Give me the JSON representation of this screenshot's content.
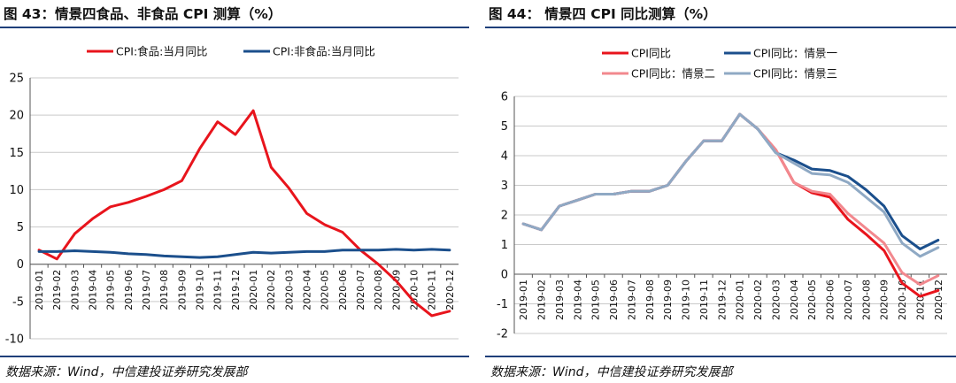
{
  "charts": [
    {
      "panel_title": "图 43：情景四食品、非食品 CPI 测算（%）",
      "source": "数据来源：Wind，中信建投证券研究发展部"
    },
    {
      "panel_title": "图 44：   情景四 CPI 同比测算（%）",
      "source": "数据来源：Wind，中信建投证券研究发展部"
    }
  ],
  "chart_data": [
    {
      "type": "line",
      "title": "",
      "xlabel": "",
      "ylabel": "",
      "ylim": [
        -10,
        25
      ],
      "yticks": [
        -10,
        -5,
        0,
        5,
        10,
        15,
        20,
        25
      ],
      "grid": true,
      "legend_position": "top",
      "categories": [
        "2019-01",
        "2019-02",
        "2019-03",
        "2019-04",
        "2019-05",
        "2019-06",
        "2019-07",
        "2019-08",
        "2019-09",
        "2019-10",
        "2019-11",
        "2019-12",
        "2020-01",
        "2020-02",
        "2020-03",
        "2020-04",
        "2020-05",
        "2020-06",
        "2020-07",
        "2020-08",
        "2020-09",
        "2020-10",
        "2020-11",
        "2020-12"
      ],
      "series": [
        {
          "name": "CPI:食品:当月同比",
          "color": "#e8141c",
          "values": [
            1.9,
            0.7,
            4.1,
            6.1,
            7.7,
            8.3,
            9.1,
            10.0,
            11.2,
            15.5,
            19.1,
            17.4,
            20.6,
            13.0,
            10.2,
            6.8,
            5.3,
            4.3,
            1.9,
            0.0,
            -2.2,
            -5.0,
            -6.9,
            -6.3
          ]
        },
        {
          "name": "CPI:非食品:当月同比",
          "color": "#1b4f8c",
          "values": [
            1.7,
            1.7,
            1.8,
            1.7,
            1.6,
            1.4,
            1.3,
            1.1,
            1.0,
            0.9,
            1.0,
            1.3,
            1.6,
            1.5,
            1.6,
            1.7,
            1.7,
            1.9,
            1.9,
            1.9,
            2.0,
            1.9,
            2.0,
            1.9
          ]
        }
      ]
    },
    {
      "type": "line",
      "title": "",
      "xlabel": "",
      "ylabel": "",
      "ylim": [
        -2,
        6
      ],
      "yticks": [
        -2,
        -1,
        0,
        1,
        2,
        3,
        4,
        5,
        6
      ],
      "grid": true,
      "legend_position": "top",
      "categories": [
        "2019-01",
        "2019-02",
        "2019-03",
        "2019-04",
        "2019-05",
        "2019-06",
        "2019-07",
        "2019-08",
        "2019-09",
        "2019-10",
        "2019-11",
        "2019-12",
        "2020-01",
        "2020-02",
        "2020-03",
        "2020-04",
        "2020-05",
        "2020-06",
        "2020-07",
        "2020-08",
        "2020-09",
        "2020-10",
        "2020-11",
        "2020-12"
      ],
      "series": [
        {
          "name": "CPI同比",
          "color": "#e8141c",
          "values": [
            1.7,
            1.5,
            2.3,
            2.5,
            2.7,
            2.7,
            2.8,
            2.8,
            3.0,
            3.8,
            4.5,
            4.5,
            5.4,
            4.9,
            4.2,
            3.1,
            2.75,
            2.6,
            1.85,
            1.35,
            0.8,
            -0.3,
            -0.75,
            -0.55
          ]
        },
        {
          "name": "CPI同比：情景一",
          "color": "#1b4f8c",
          "values": [
            1.7,
            1.5,
            2.3,
            2.5,
            2.7,
            2.7,
            2.8,
            2.8,
            3.0,
            3.8,
            4.5,
            4.5,
            5.4,
            4.9,
            4.1,
            3.85,
            3.55,
            3.5,
            3.3,
            2.85,
            2.3,
            1.3,
            0.85,
            1.15
          ]
        },
        {
          "name": "CPI同比：情景二",
          "color": "#f2888e",
          "values": [
            1.7,
            1.5,
            2.3,
            2.5,
            2.7,
            2.7,
            2.8,
            2.8,
            3.0,
            3.8,
            4.5,
            4.5,
            5.4,
            4.9,
            4.2,
            3.1,
            2.8,
            2.7,
            2.05,
            1.55,
            1.05,
            0.05,
            -0.35,
            -0.05
          ]
        },
        {
          "name": "CPI同比：情景三",
          "color": "#8fa9c4",
          "values": [
            1.7,
            1.5,
            2.3,
            2.5,
            2.7,
            2.7,
            2.8,
            2.8,
            3.0,
            3.8,
            4.5,
            4.5,
            5.4,
            4.9,
            4.1,
            3.75,
            3.4,
            3.35,
            3.1,
            2.6,
            2.1,
            1.05,
            0.6,
            0.9
          ]
        }
      ]
    }
  ]
}
